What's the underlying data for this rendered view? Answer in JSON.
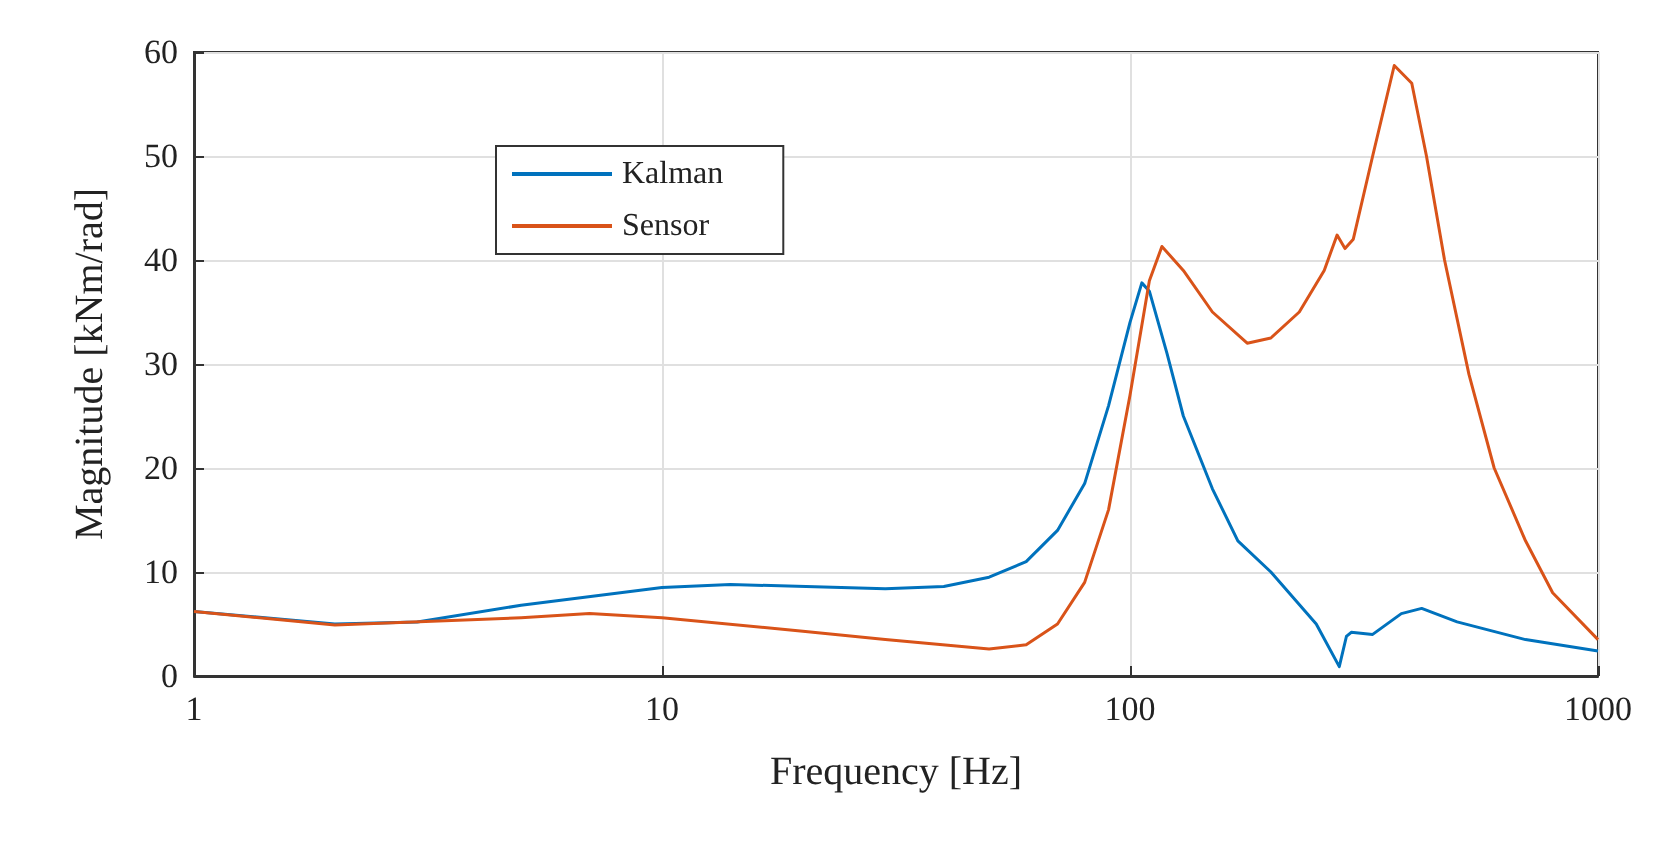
{
  "chart_data": {
    "type": "line",
    "xlabel": "Frequency [Hz]",
    "ylabel": "Magnitude [kNm/rad]",
    "log": "x",
    "xlim": [
      1,
      1000
    ],
    "xticks": [
      1,
      10,
      100,
      1000
    ],
    "ylim": [
      0,
      60
    ],
    "yticks": [
      0,
      10,
      20,
      30,
      40,
      50,
      60
    ],
    "grid": true,
    "legend": "top left",
    "marker": "none",
    "line_style": "solid",
    "series": [
      {
        "name": "Kalman",
        "color": "#0072bd",
        "x": [
          1,
          2,
          3,
          5,
          10,
          14,
          30,
          40,
          50,
          60,
          70,
          80,
          90,
          100,
          106,
          110,
          120,
          130,
          150,
          170,
          200,
          250,
          280,
          290,
          297,
          330,
          380,
          420,
          500,
          700,
          1000
        ],
        "values": [
          6.2,
          5.0,
          5.2,
          6.8,
          8.5,
          8.8,
          8.4,
          8.6,
          9.5,
          11,
          14,
          18.5,
          26,
          34,
          37.8,
          37,
          31,
          25,
          18,
          13,
          10,
          5,
          0.9,
          3.8,
          4.2,
          4.0,
          6,
          6.5,
          5.2,
          3.5,
          2.4
        ]
      },
      {
        "name": "Sensor",
        "color": "#d95319",
        "x": [
          1,
          2,
          5,
          7,
          10,
          20,
          30,
          50,
          60,
          70,
          80,
          90,
          100,
          110,
          117,
          130,
          150,
          178,
          200,
          230,
          260,
          277,
          288,
          300,
          330,
          367,
          400,
          430,
          470,
          530,
          600,
          700,
          800,
          1000
        ],
        "values": [
          6.2,
          4.9,
          5.6,
          6,
          5.6,
          4.3,
          3.5,
          2.6,
          3,
          5,
          9,
          16,
          27,
          38,
          41.3,
          39,
          35,
          32,
          32.5,
          35,
          39,
          42.4,
          41.1,
          42,
          50,
          58.7,
          57,
          50,
          40,
          29,
          20,
          13,
          8,
          3.5
        ]
      }
    ]
  }
}
